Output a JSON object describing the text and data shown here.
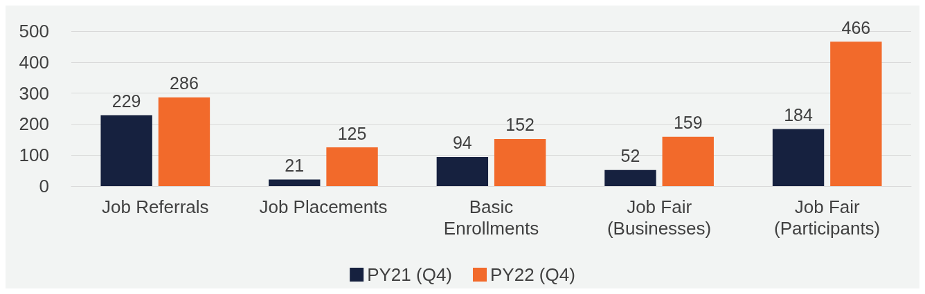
{
  "chart_data": {
    "type": "bar",
    "categories": [
      "Job Referrals",
      "Job Placements",
      "Basic\nEnrollments",
      "Job Fair\n(Businesses)",
      "Job Fair\n(Participants)"
    ],
    "series": [
      {
        "name": "PY21 (Q4)",
        "color": "#16213f",
        "values": [
          229,
          21,
          94,
          52,
          184
        ]
      },
      {
        "name": "PY22 (Q4)",
        "color": "#f26a2b",
        "values": [
          286,
          125,
          152,
          159,
          466
        ]
      }
    ],
    "ylim": [
      0,
      500
    ],
    "yticks": [
      0,
      100,
      200,
      300,
      400,
      500
    ],
    "grid": "y",
    "legend": "bottom",
    "data_labels": true
  }
}
